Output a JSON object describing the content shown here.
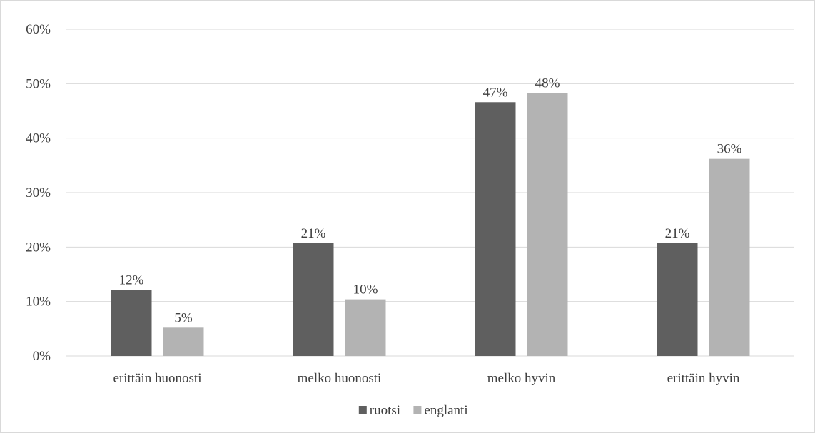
{
  "chart_data": {
    "type": "bar",
    "categories": [
      "erittäin huonosti",
      "melko huonosti",
      "melko hyvin",
      "erittäin hyvin"
    ],
    "series": [
      {
        "name": "ruotsi",
        "color": "#5f5f5f",
        "values": [
          12,
          21,
          47,
          21
        ],
        "labels": [
          "12%",
          "21%",
          "47%",
          "21%"
        ]
      },
      {
        "name": "englanti",
        "color": "#b3b3b3",
        "values": [
          5,
          10,
          48,
          36
        ],
        "labels": [
          "5%",
          "10%",
          "48%",
          "36%"
        ]
      }
    ],
    "plotted_values": [
      [
        12.1,
        20.7,
        46.6,
        20.7
      ],
      [
        5.2,
        10.4,
        48.3,
        36.2
      ]
    ],
    "ylim": [
      0,
      60
    ],
    "yticks": [
      0,
      10,
      20,
      30,
      40,
      50,
      60
    ],
    "ytick_labels": [
      "0%",
      "10%",
      "20%",
      "30%",
      "40%",
      "50%",
      "60%"
    ],
    "grid": true,
    "gridline_color": "#d9d9d9",
    "legend_position": "bottom",
    "title": "",
    "xlabel": "",
    "ylabel": ""
  }
}
